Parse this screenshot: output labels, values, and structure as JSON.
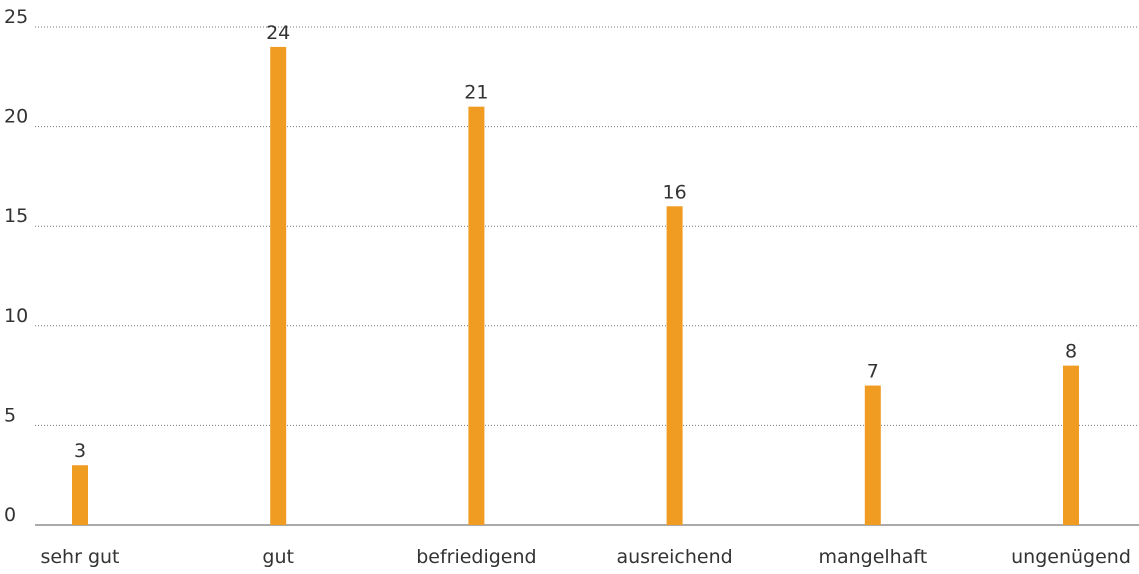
{
  "chart_data": {
    "type": "bar",
    "categories": [
      "sehr gut",
      "gut",
      "befriedigend",
      "ausreichend",
      "mangelhaft",
      "ungenügend"
    ],
    "values": [
      3,
      24,
      21,
      16,
      7,
      8
    ],
    "color": "#f09c22",
    "ylim": [
      0,
      25
    ],
    "yticks": [
      0,
      5,
      10,
      15,
      20,
      25
    ],
    "grid": true
  }
}
